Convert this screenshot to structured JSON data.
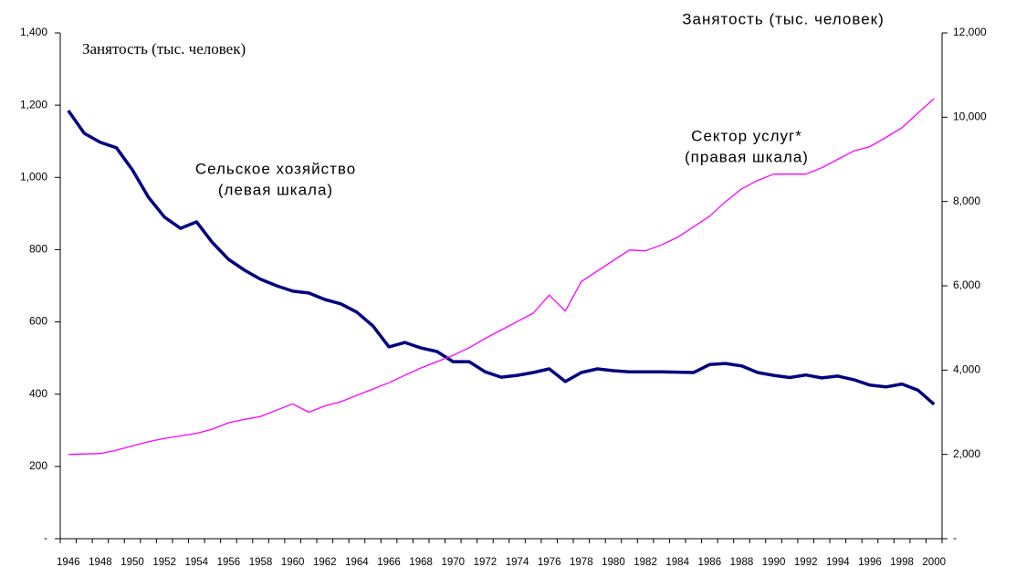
{
  "chart_data": {
    "type": "line",
    "y_label": "Занятость (тыс. человек)",
    "y2_label": "Занятость (тыс. человек)",
    "annotations": [
      "Сельское хозяйство",
      "(левая шкала)",
      "Сектор услуг*",
      "(правая шкала)"
    ],
    "categories": [
      "1946",
      null,
      "1948",
      null,
      "1950",
      null,
      "1952",
      null,
      "1954",
      null,
      "1956",
      null,
      "1958",
      null,
      "1960",
      null,
      "1962",
      null,
      "1964",
      null,
      "1966",
      null,
      "1968",
      null,
      "1970",
      null,
      "1972",
      null,
      "1974",
      null,
      "1976",
      null,
      "1978",
      null,
      "1980",
      null,
      "1982",
      null,
      "1984",
      null,
      "1986",
      null,
      "1988",
      null,
      "1990",
      null,
      "1992",
      null,
      "1994",
      null,
      "1996",
      null,
      "1998",
      null,
      "2000"
    ],
    "series": [
      {
        "color": "#000080",
        "axis": "y",
        "values": [
          1185,
          1122,
          1097,
          1082,
          1021,
          945,
          890,
          859,
          877,
          819,
          773,
          743,
          718,
          700,
          685,
          680,
          662,
          650,
          627,
          589,
          531,
          543,
          528,
          518,
          490,
          490,
          462,
          447,
          452,
          460,
          470,
          435,
          460,
          470,
          465,
          462,
          462,
          462,
          461,
          460,
          482,
          485,
          478,
          460,
          452,
          446,
          453,
          445,
          450,
          440,
          425,
          420,
          428,
          411,
          372
        ]
      },
      {
        "color": "#ff00ff",
        "axis": "y2",
        "values": [
          2000,
          2010,
          2020,
          2100,
          2200,
          2300,
          2380,
          2440,
          2500,
          2600,
          2750,
          2830,
          2900,
          3050,
          3200,
          3000,
          3150,
          3250,
          3400,
          3550,
          3700,
          3880,
          4050,
          4200,
          4350,
          4530,
          4750,
          4950,
          5150,
          5350,
          5780,
          5400,
          6100,
          6350,
          6600,
          6850,
          6830,
          6970,
          7150,
          7400,
          7650,
          8000,
          8300,
          8500,
          8650,
          8650,
          8650,
          8800,
          9000,
          9200,
          9300,
          9520,
          9750,
          10100,
          10440
        ]
      }
    ],
    "ylim": [
      0,
      1400
    ],
    "yticks": [
      {
        "value": 0,
        "label": "-"
      },
      200,
      400,
      600,
      800,
      {
        "value": 1000,
        "label": "1,000"
      },
      {
        "value": 1200,
        "label": "1,200"
      },
      {
        "value": 1400,
        "label": "1,400"
      }
    ],
    "y2lim": [
      0,
      12000
    ],
    "y2ticks": [
      {
        "value": 0,
        "label": "-"
      },
      {
        "value": 2000,
        "label": "2,000"
      },
      {
        "value": 4000,
        "label": "4,000"
      },
      {
        "value": 6000,
        "label": "6,000"
      },
      {
        "value": 8000,
        "label": "8,000"
      },
      {
        "value": 10000,
        "label": "10,000"
      },
      {
        "value": 12000,
        "label": "12,000"
      }
    ],
    "grid": false
  }
}
